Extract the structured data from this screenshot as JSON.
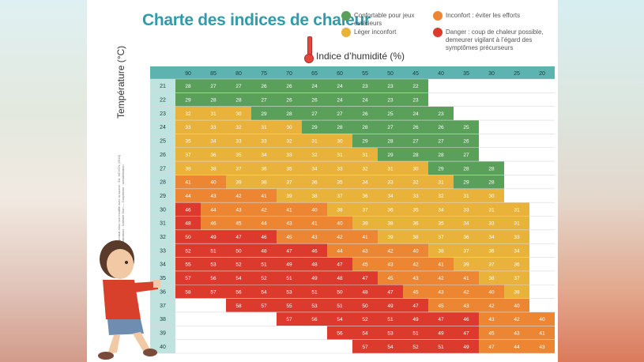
{
  "title": "Charte des indices de chaleur",
  "legend": [
    {
      "label": "Confortable pour jeux extérieurs",
      "color": "#5aa05a"
    },
    {
      "label": "Inconfort : éviter les efforts",
      "color": "#ec8632"
    },
    {
      "label": "Léger inconfort",
      "color": "#e8b23b"
    },
    {
      "label": "Danger : coup de chaleur possible, demeurer vigilant à l’égard des symptômes précurseurs",
      "color": "#dc3a2c"
    }
  ],
  "credits": {
    "line1": "Reproduit et/ou non modifié avec la source : Éd. MCVGN (2018)",
    "line2": "Illustrations : Nathalie Dion — Graphisme : sensibilisation"
  },
  "chart_data": {
    "type": "heatmap",
    "title": "Charte des indices de chaleur",
    "xlabel": "Indice d’humidité (%)",
    "ylabel": "Température (°C)",
    "x": [
      "90",
      "85",
      "80",
      "75",
      "70",
      "65",
      "60",
      "55",
      "50",
      "45",
      "40",
      "35",
      "30",
      "25",
      "20"
    ],
    "y": [
      "21",
      "22",
      "23",
      "24",
      "25",
      "26",
      "27",
      "28",
      "29",
      "30",
      "31",
      "32",
      "33",
      "34",
      "35",
      "36",
      "37",
      "38",
      "39",
      "40"
    ],
    "values": [
      [
        "28",
        "27",
        "27",
        "26",
        "26",
        "24",
        "24",
        "23",
        "23",
        "22",
        null,
        null,
        null,
        null,
        null
      ],
      [
        "29",
        "28",
        "28",
        "27",
        "26",
        "26",
        "24",
        "24",
        "23",
        "23",
        null,
        null,
        null,
        null,
        null
      ],
      [
        "32",
        "31",
        "30",
        "29",
        "28",
        "27",
        "27",
        "26",
        "25",
        "24",
        "23",
        null,
        null,
        null,
        null
      ],
      [
        "33",
        "33",
        "32",
        "31",
        "30",
        "29",
        "28",
        "28",
        "27",
        "26",
        "26",
        "25",
        null,
        null,
        null
      ],
      [
        "35",
        "34",
        "33",
        "33",
        "32",
        "31",
        "30",
        "29",
        "28",
        "27",
        "27",
        "26",
        null,
        null,
        null
      ],
      [
        "37",
        "36",
        "35",
        "34",
        "33",
        "32",
        "31",
        "31",
        "29",
        "28",
        "28",
        "27",
        null,
        null,
        null
      ],
      [
        "39",
        "38",
        "37",
        "36",
        "35",
        "34",
        "33",
        "32",
        "31",
        "30",
        "29",
        "28",
        "28",
        null,
        null
      ],
      [
        "41",
        "40",
        "39",
        "38",
        "37",
        "36",
        "35",
        "34",
        "33",
        "32",
        "31",
        "29",
        "28",
        null,
        null
      ],
      [
        "44",
        "43",
        "42",
        "41",
        "39",
        "38",
        "37",
        "36",
        "34",
        "33",
        "32",
        "31",
        "30",
        null,
        null
      ],
      [
        "46",
        "44",
        "43",
        "42",
        "41",
        "40",
        "38",
        "37",
        "36",
        "35",
        "34",
        "33",
        "31",
        "31",
        null
      ],
      [
        "48",
        "46",
        "45",
        "44",
        "43",
        "41",
        "40",
        "39",
        "38",
        "36",
        "35",
        "34",
        "33",
        "31",
        null
      ],
      [
        "50",
        "49",
        "47",
        "46",
        "45",
        "43",
        "42",
        "41",
        "39",
        "38",
        "37",
        "36",
        "34",
        "33",
        null
      ],
      [
        "52",
        "51",
        "50",
        "48",
        "47",
        "46",
        "44",
        "43",
        "42",
        "40",
        "38",
        "37",
        "36",
        "34",
        null
      ],
      [
        "55",
        "53",
        "52",
        "51",
        "49",
        "48",
        "47",
        "45",
        "43",
        "42",
        "41",
        "39",
        "37",
        "36",
        null
      ],
      [
        "57",
        "56",
        "54",
        "52",
        "51",
        "49",
        "48",
        "47",
        "45",
        "43",
        "42",
        "41",
        "38",
        "37",
        null
      ],
      [
        "58",
        "57",
        "56",
        "54",
        "53",
        "51",
        "50",
        "48",
        "47",
        "45",
        "43",
        "42",
        "40",
        "38",
        null
      ],
      [
        null,
        null,
        "58",
        "57",
        "55",
        "53",
        "51",
        "50",
        "49",
        "47",
        "45",
        "43",
        "42",
        "40",
        null
      ],
      [
        null,
        null,
        null,
        null,
        "57",
        "56",
        "54",
        "52",
        "51",
        "49",
        "47",
        "46",
        "43",
        "42",
        "40"
      ],
      [
        null,
        null,
        null,
        null,
        null,
        null,
        "56",
        "54",
        "53",
        "51",
        "49",
        "47",
        "45",
        "43",
        "41"
      ],
      [
        null,
        null,
        null,
        null,
        null,
        null,
        null,
        "57",
        "54",
        "52",
        "51",
        "49",
        "47",
        "44",
        "43"
      ]
    ],
    "categories": [
      [
        "V",
        "V",
        "V",
        "V",
        "V",
        "V",
        "V",
        "V",
        "V",
        "V",
        null,
        null,
        null,
        null,
        null
      ],
      [
        "V",
        "V",
        "V",
        "V",
        "V",
        "V",
        "V",
        "V",
        "V",
        "V",
        null,
        null,
        null,
        null,
        null
      ],
      [
        "J",
        "J",
        "J",
        "V",
        "V",
        "V",
        "V",
        "V",
        "V",
        "V",
        "V",
        null,
        null,
        null,
        null
      ],
      [
        "J",
        "J",
        "J",
        "J",
        "J",
        "V",
        "V",
        "V",
        "V",
        "V",
        "V",
        "V",
        null,
        null,
        null
      ],
      [
        "J",
        "J",
        "J",
        "J",
        "J",
        "J",
        "J",
        "V",
        "V",
        "V",
        "V",
        "V",
        null,
        null,
        null
      ],
      [
        "J",
        "J",
        "J",
        "J",
        "J",
        "J",
        "J",
        "J",
        "V",
        "V",
        "V",
        "V",
        null,
        null,
        null
      ],
      [
        "J",
        "J",
        "J",
        "J",
        "J",
        "J",
        "J",
        "J",
        "J",
        "J",
        "V",
        "V",
        "V",
        null,
        null
      ],
      [
        "O",
        "O",
        "J",
        "J",
        "J",
        "J",
        "J",
        "J",
        "J",
        "J",
        "J",
        "V",
        "V",
        null,
        null
      ],
      [
        "O",
        "O",
        "O",
        "O",
        "J",
        "J",
        "J",
        "J",
        "J",
        "J",
        "J",
        "J",
        "J",
        null,
        null
      ],
      [
        "R",
        "O",
        "O",
        "O",
        "O",
        "O",
        "J",
        "J",
        "J",
        "J",
        "J",
        "J",
        "J",
        "J",
        null
      ],
      [
        "R",
        "O",
        "O",
        "O",
        "O",
        "O",
        "O",
        "J",
        "J",
        "J",
        "J",
        "J",
        "J",
        "J",
        null
      ],
      [
        "R",
        "R",
        "R",
        "R",
        "O",
        "O",
        "O",
        "O",
        "J",
        "J",
        "J",
        "J",
        "J",
        "J",
        null
      ],
      [
        "R",
        "R",
        "R",
        "R",
        "R",
        "R",
        "O",
        "O",
        "O",
        "O",
        "J",
        "J",
        "J",
        "J",
        null
      ],
      [
        "R",
        "R",
        "R",
        "R",
        "R",
        "R",
        "R",
        "O",
        "O",
        "O",
        "O",
        "J",
        "J",
        "J",
        null
      ],
      [
        "R",
        "R",
        "R",
        "R",
        "R",
        "R",
        "R",
        "R",
        "O",
        "O",
        "O",
        "O",
        "J",
        "J",
        null
      ],
      [
        "R",
        "R",
        "R",
        "R",
        "R",
        "R",
        "R",
        "R",
        "R",
        "O",
        "O",
        "O",
        "O",
        "J",
        null
      ],
      [
        null,
        null,
        "R",
        "R",
        "R",
        "R",
        "R",
        "R",
        "R",
        "R",
        "O",
        "O",
        "O",
        "O",
        null
      ],
      [
        null,
        null,
        null,
        null,
        "R",
        "R",
        "R",
        "R",
        "R",
        "R",
        "R",
        "R",
        "O",
        "O",
        "O"
      ],
      [
        null,
        null,
        null,
        null,
        null,
        null,
        "R",
        "R",
        "R",
        "R",
        "R",
        "R",
        "O",
        "O",
        "O"
      ],
      [
        null,
        null,
        null,
        null,
        null,
        null,
        null,
        "R",
        "R",
        "R",
        "R",
        "R",
        "O",
        "O",
        "O"
      ]
    ],
    "category_colors": {
      "V": "#5aa05a",
      "J": "#e8b23b",
      "O": "#ec8632",
      "R": "#dc3a2c"
    }
  }
}
